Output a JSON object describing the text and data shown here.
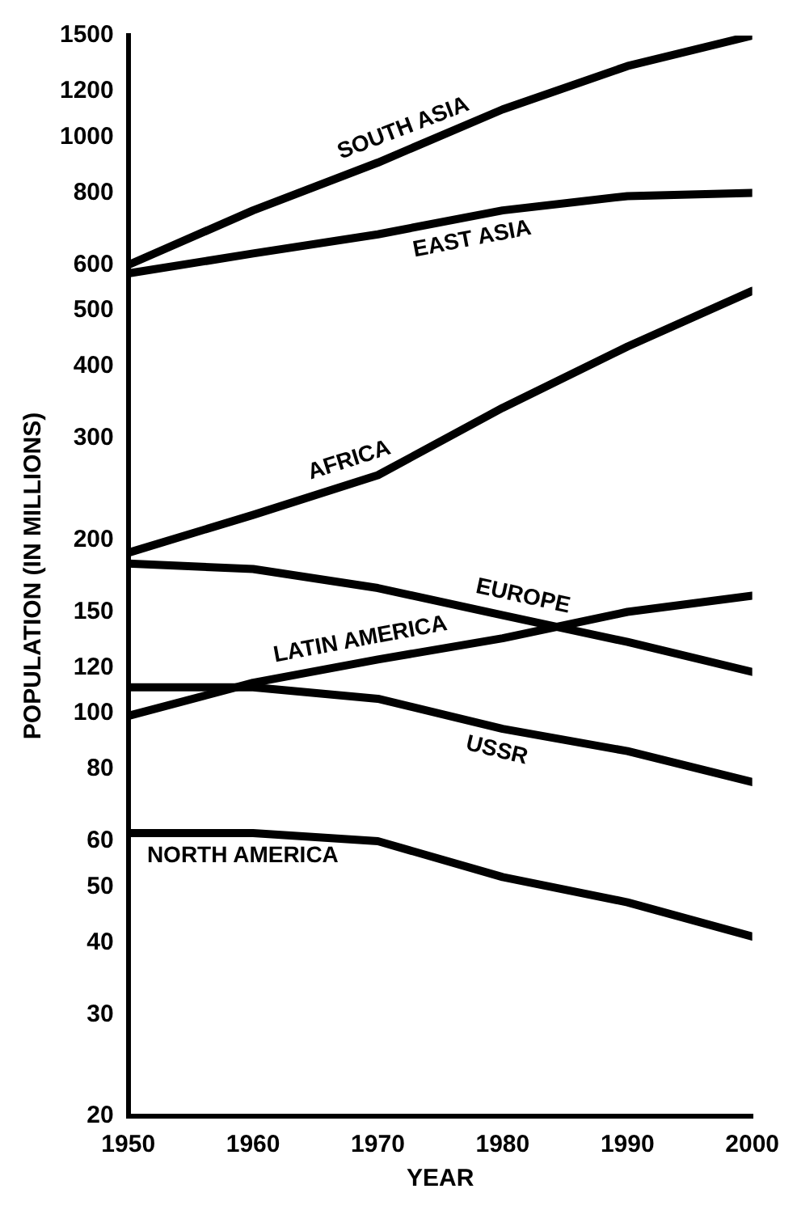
{
  "chart_data": {
    "type": "line",
    "xlabel": "YEAR",
    "ylabel": "POPULATION (IN MILLIONS)",
    "xlim": [
      1950,
      2000
    ],
    "xticks": [
      1950,
      1960,
      1970,
      1980,
      1990,
      2000
    ],
    "ylim": [
      20,
      1500
    ],
    "yticks": [
      20,
      30,
      40,
      50,
      60,
      80,
      100,
      120,
      150,
      200,
      300,
      400,
      500,
      600,
      800,
      1000,
      1200,
      1500
    ],
    "log": "y",
    "grid": false,
    "legend": false,
    "marker": "none",
    "line_style": "solid",
    "x": [
      1950,
      1960,
      1970,
      1980,
      1990,
      2000
    ],
    "series": [
      {
        "name": "SOUTH ASIA",
        "color": "#000000",
        "values": [
          600,
          746,
          903,
          1117,
          1328,
          1500
        ]
      },
      {
        "name": "EAST ASIA",
        "color": "#000000",
        "values": [
          580,
          628,
          678,
          746,
          790,
          800
        ]
      },
      {
        "name": "AFRICA",
        "color": "#000000",
        "values": [
          190,
          221,
          259,
          339,
          433,
          541
        ]
      },
      {
        "name": "EUROPE",
        "color": "#000000",
        "values": [
          182,
          178,
          165,
          148,
          133,
          118
        ]
      },
      {
        "name": "LATIN AMERICA",
        "color": "#000000",
        "values": [
          99,
          113,
          124,
          135,
          150,
          160
        ]
      },
      {
        "name": "USSR",
        "color": "#000000",
        "values": [
          111,
          111,
          106,
          94,
          86,
          76
        ]
      },
      {
        "name": "NORTH AMERICA",
        "color": "#000000",
        "values": [
          62,
          62,
          60,
          52,
          47,
          41
        ]
      }
    ]
  }
}
